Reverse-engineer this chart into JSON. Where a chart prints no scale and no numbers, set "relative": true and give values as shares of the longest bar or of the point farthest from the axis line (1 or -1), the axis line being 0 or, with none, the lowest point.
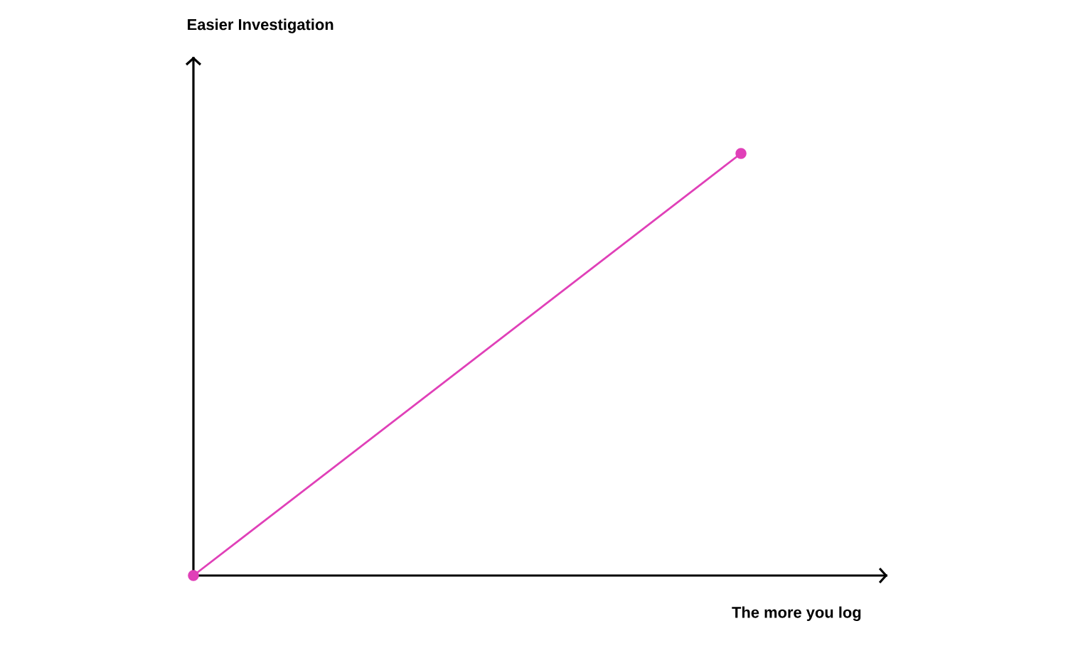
{
  "chart_data": {
    "type": "line",
    "xlabel": "The more you log",
    "annotations": [
      "Easier Investigation"
    ],
    "categories": [
      null,
      null
    ],
    "relative": true,
    "marker": "circle",
    "line_style": "solid",
    "series": [
      {
        "color": "#e040b8",
        "values": [
          0,
          1
        ]
      }
    ]
  }
}
